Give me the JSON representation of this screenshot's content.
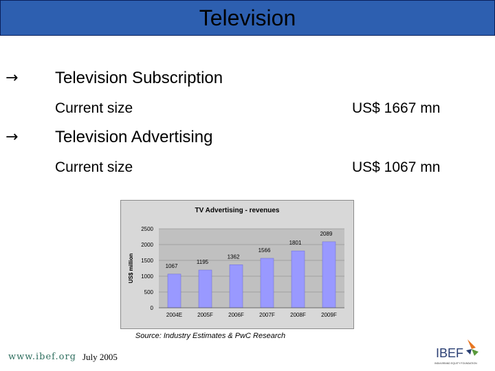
{
  "slide": {
    "title": "Television",
    "bullets": [
      {
        "icon": "right-arrow-icon",
        "heading": "Television Subscription",
        "label": "Current size",
        "value": "US$ 1667 mn"
      },
      {
        "icon": "right-arrow-icon",
        "heading": "Television Advertising",
        "label": "Current size",
        "value": "US$ 1067 mn"
      }
    ],
    "source": "Source: Industry Estimates & PwC Research",
    "footer": {
      "url": "www.ibef.org",
      "date": "July 2005",
      "logo_text": "IBEF",
      "logo_subtext": "INDIA BRAND EQUITY FOUNDATION"
    }
  },
  "colors": {
    "title_bar": "#2d5fb0",
    "bar_fill": "#9999ff",
    "plot_bg": "#c0c0c0",
    "chart_bg": "#d8d8d8"
  },
  "chart_data": {
    "type": "bar",
    "title": "TV Advertising - revenues",
    "ylabel": "US$ million",
    "xlabel": "",
    "categories": [
      "2004E",
      "2005F",
      "2006F",
      "2007F",
      "2008F",
      "2009F"
    ],
    "values": [
      1067,
      1195,
      1362,
      1566,
      1801,
      2089
    ],
    "ylim": [
      0,
      2500
    ],
    "yticks": [
      0,
      500,
      1000,
      1500,
      2000,
      2500
    ],
    "grid": true,
    "legend": "none"
  }
}
